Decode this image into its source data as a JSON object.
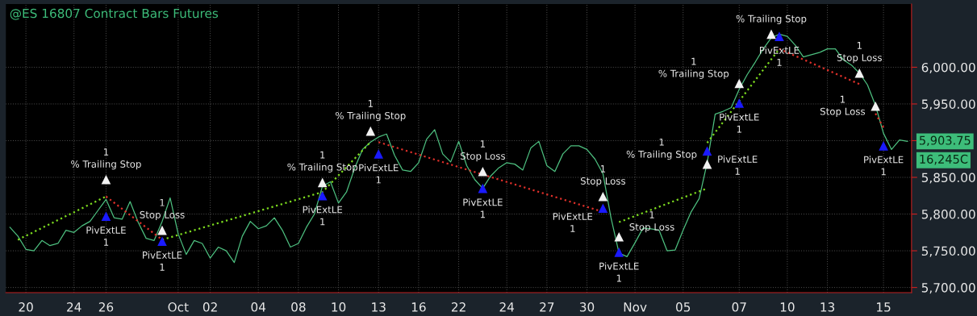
{
  "chart_data": {
    "type": "line",
    "title": "@ES 16807 Contract Bars Futures",
    "categories": [
      null,
      null,
      "20",
      null,
      null,
      null,
      null,
      null,
      "24",
      null,
      null,
      null,
      "26",
      null,
      null,
      null,
      null,
      null,
      null,
      null,
      null,
      "Oct",
      null,
      null,
      null,
      "02",
      null,
      null,
      null,
      null,
      null,
      "04",
      null,
      null,
      null,
      null,
      "08",
      null,
      null,
      null,
      null,
      "10",
      null,
      null,
      null,
      null,
      "13",
      null,
      null,
      null,
      null,
      "16",
      null,
      null,
      null,
      null,
      "22",
      null,
      null,
      null,
      null,
      null,
      "24",
      null,
      null,
      null,
      null,
      "27",
      null,
      null,
      null,
      null,
      "30",
      null,
      null,
      null,
      null,
      null,
      "Nov",
      null,
      null,
      null,
      null,
      null,
      "05",
      null,
      null,
      null,
      null,
      null,
      null,
      "07",
      null,
      null,
      null,
      null,
      null,
      "10",
      null,
      null,
      null,
      null,
      "13",
      null,
      null,
      null,
      null,
      null,
      null,
      "15",
      null,
      null,
      null
    ],
    "ylim": [
      5693,
      6086
    ],
    "yticks": [
      {
        "value": 5700,
        "label": "5,700.00"
      },
      {
        "value": 5750,
        "label": "5,750.00"
      },
      {
        "value": 5800,
        "label": "5,800.00"
      },
      {
        "value": 5850,
        "label": "5,850.00"
      },
      {
        "value": 5900,
        "label": null
      },
      {
        "value": 5950,
        "label": "5,950.00"
      },
      {
        "value": 6000,
        "label": "6,000.00"
      }
    ],
    "grid": true,
    "series": [
      {
        "color": "#4dbf7f",
        "line_style": "solid",
        "values": [
          5782,
          5770,
          5752,
          5750,
          5764,
          5757,
          5760,
          5778,
          5775,
          5784,
          5790,
          5805,
          5820,
          5795,
          5793,
          5817,
          5789,
          5767,
          5764,
          5790,
          5822,
          5773,
          5745,
          5764,
          5760,
          5740,
          5755,
          5750,
          5734,
          5770,
          5790,
          5780,
          5784,
          5795,
          5778,
          5755,
          5760,
          5782,
          5800,
          5838,
          5844,
          5815,
          5830,
          5862,
          5888,
          5898,
          5905,
          5909,
          5880,
          5860,
          5858,
          5870,
          5902,
          5915,
          5882,
          5871,
          5899,
          5866,
          5847,
          5835,
          5852,
          5863,
          5870,
          5868,
          5860,
          5890,
          5899,
          5866,
          5858,
          5882,
          5893,
          5893,
          5888,
          5875,
          5855,
          5795,
          5747,
          5742,
          5761,
          5781,
          5780,
          5778,
          5750,
          5751,
          5778,
          5803,
          5821,
          5870,
          5936,
          5940,
          5945,
          5970,
          5990,
          6007,
          6025,
          6040,
          6045,
          6042,
          6030,
          6014,
          6017,
          6020,
          6025,
          6025,
          6010,
          6003,
          5992,
          5976,
          5948,
          5910,
          5888,
          5901,
          5899
        ]
      },
      {
        "color": "#7ddc1f",
        "line_style": "dotted",
        "values": [
          null,
          5765,
          null,
          null,
          null,
          null,
          null,
          null,
          null,
          null,
          null,
          null,
          5824,
          null,
          null,
          null,
          null,
          null,
          null,
          null,
          null,
          null,
          null,
          null,
          null,
          null,
          null,
          null,
          null,
          null,
          null,
          null,
          null,
          null,
          null,
          null,
          null,
          null,
          null,
          null,
          null,
          null,
          null,
          null,
          null,
          null,
          null,
          null,
          null,
          null,
          null,
          null,
          null,
          null,
          null,
          null,
          null,
          null,
          null,
          null,
          null,
          null,
          null,
          null,
          null,
          null,
          null,
          null,
          null,
          null,
          null,
          null,
          null,
          null,
          null,
          null,
          null,
          null,
          null,
          null,
          null,
          null,
          null,
          null,
          null,
          null,
          null,
          null,
          null,
          null,
          null,
          null,
          null,
          null,
          null,
          null,
          null,
          null,
          null,
          null,
          null,
          null,
          null,
          null,
          null,
          null,
          null,
          null,
          null,
          null,
          null,
          null,
          null
        ]
      },
      {
        "color": "#7ddc1f",
        "line_style": "dotted",
        "values": [
          null,
          null,
          null,
          null,
          null,
          null,
          null,
          null,
          null,
          null,
          null,
          null,
          null,
          null,
          null,
          null,
          null,
          null,
          null,
          5765,
          null,
          null,
          null,
          null,
          null,
          null,
          null,
          null,
          null,
          null,
          null,
          null,
          null,
          null,
          null,
          null,
          null,
          null,
          null,
          5830,
          null,
          null,
          null,
          null,
          null,
          5898,
          null,
          null,
          null,
          null,
          null,
          null,
          null,
          null,
          null,
          null,
          null,
          null,
          null,
          null,
          null,
          null,
          null,
          null,
          null,
          null,
          null,
          null,
          null,
          null,
          null,
          null,
          null,
          null,
          null,
          null,
          null,
          null,
          null,
          null,
          null,
          null,
          null,
          null,
          null,
          null,
          null,
          null,
          null,
          null,
          null,
          null,
          null,
          null,
          null,
          null,
          null,
          null,
          null,
          null,
          null,
          null,
          null,
          null,
          null,
          null,
          null,
          null,
          null,
          null,
          null,
          null,
          null
        ]
      },
      {
        "color": "#7ddc1f",
        "line_style": "dotted",
        "values": [
          null,
          null,
          null,
          null,
          null,
          null,
          null,
          null,
          null,
          null,
          null,
          null,
          null,
          null,
          null,
          null,
          null,
          null,
          null,
          null,
          null,
          null,
          null,
          null,
          null,
          null,
          null,
          null,
          null,
          null,
          null,
          null,
          null,
          null,
          null,
          null,
          null,
          null,
          null,
          null,
          null,
          null,
          null,
          null,
          null,
          null,
          null,
          null,
          null,
          null,
          null,
          null,
          null,
          null,
          null,
          null,
          null,
          null,
          null,
          null,
          null,
          null,
          null,
          null,
          null,
          null,
          null,
          null,
          null,
          null,
          null,
          null,
          null,
          null,
          null,
          null,
          5789,
          null,
          null,
          null,
          null,
          null,
          null,
          null,
          null,
          null,
          null,
          5835,
          null,
          null,
          null,
          null,
          null,
          null,
          null,
          null,
          null,
          null,
          null,
          null,
          null,
          null,
          null,
          null,
          null,
          null,
          null,
          null,
          null,
          null,
          null,
          null,
          null
        ]
      },
      {
        "color": "#7ddc1f",
        "line_style": "dotted",
        "values": [
          null,
          null,
          null,
          null,
          null,
          null,
          null,
          null,
          null,
          null,
          null,
          null,
          null,
          null,
          null,
          null,
          null,
          null,
          null,
          null,
          null,
          null,
          null,
          null,
          null,
          null,
          null,
          null,
          null,
          null,
          null,
          null,
          null,
          null,
          null,
          null,
          null,
          null,
          null,
          null,
          null,
          null,
          null,
          null,
          null,
          null,
          null,
          null,
          null,
          null,
          null,
          null,
          null,
          null,
          null,
          null,
          null,
          null,
          null,
          null,
          null,
          null,
          null,
          null,
          null,
          null,
          null,
          null,
          null,
          null,
          null,
          null,
          null,
          null,
          null,
          null,
          null,
          null,
          null,
          null,
          null,
          null,
          null,
          null,
          null,
          null,
          null,
          5897,
          null,
          null,
          null,
          null,
          null,
          null,
          null,
          null,
          6025,
          null,
          null,
          null,
          null,
          null,
          null,
          null,
          null,
          null,
          null,
          null,
          null,
          null,
          null,
          null,
          null
        ]
      },
      {
        "color": "#e0302a",
        "line_style": "dotted",
        "values": [
          null,
          null,
          null,
          null,
          null,
          null,
          null,
          null,
          null,
          null,
          null,
          null,
          5824,
          null,
          null,
          null,
          null,
          null,
          null,
          5765,
          null,
          null,
          null,
          null,
          null,
          null,
          null,
          null,
          null,
          null,
          null,
          null,
          null,
          null,
          null,
          null,
          null,
          null,
          null,
          null,
          null,
          null,
          null,
          null,
          null,
          null,
          null,
          null,
          null,
          null,
          null,
          null,
          null,
          null,
          null,
          null,
          null,
          null,
          null,
          null,
          null,
          null,
          null,
          null,
          null,
          null,
          null,
          null,
          null,
          null,
          null,
          null,
          null,
          null,
          null,
          null,
          null,
          null,
          null,
          null,
          null,
          null,
          null,
          null,
          null,
          null,
          null,
          null,
          null,
          null,
          null,
          null,
          null,
          null,
          null,
          null,
          null,
          null,
          null,
          null,
          null,
          null,
          null,
          null,
          null,
          null,
          null,
          null,
          null,
          null,
          null,
          null,
          null
        ]
      },
      {
        "color": "#e0302a",
        "line_style": "dotted",
        "values": [
          null,
          null,
          null,
          null,
          null,
          null,
          null,
          null,
          null,
          null,
          null,
          null,
          null,
          null,
          null,
          null,
          null,
          null,
          null,
          null,
          null,
          null,
          null,
          null,
          null,
          null,
          null,
          null,
          null,
          null,
          null,
          null,
          null,
          null,
          null,
          null,
          null,
          null,
          null,
          null,
          null,
          null,
          null,
          null,
          null,
          null,
          5898,
          null,
          null,
          null,
          null,
          null,
          null,
          null,
          null,
          null,
          null,
          null,
          null,
          null,
          null,
          null,
          null,
          null,
          null,
          null,
          null,
          null,
          null,
          null,
          null,
          null,
          null,
          null,
          5803,
          null,
          null,
          null,
          null,
          null,
          null,
          null,
          null,
          null,
          null,
          null,
          null,
          null,
          null,
          null,
          null,
          null,
          null,
          null,
          null,
          null,
          null,
          null,
          null,
          null,
          null,
          null,
          null,
          null,
          null,
          null,
          null,
          null,
          null,
          null,
          null,
          null,
          null
        ]
      },
      {
        "color": "#e0302a",
        "line_style": "dotted",
        "values": [
          null,
          null,
          null,
          null,
          null,
          null,
          null,
          null,
          null,
          null,
          null,
          null,
          null,
          null,
          null,
          null,
          null,
          null,
          null,
          null,
          null,
          null,
          null,
          null,
          null,
          null,
          null,
          null,
          null,
          null,
          null,
          null,
          null,
          null,
          null,
          null,
          null,
          null,
          null,
          null,
          null,
          null,
          null,
          null,
          null,
          null,
          null,
          null,
          null,
          null,
          null,
          null,
          null,
          null,
          null,
          null,
          null,
          null,
          null,
          null,
          null,
          null,
          null,
          null,
          null,
          null,
          null,
          null,
          null,
          null,
          null,
          null,
          null,
          null,
          null,
          null,
          null,
          null,
          null,
          null,
          null,
          null,
          null,
          null,
          null,
          null,
          null,
          null,
          null,
          null,
          null,
          null,
          null,
          null,
          null,
          null,
          6025,
          null,
          null,
          null,
          null,
          null,
          null,
          null,
          null,
          null,
          5977,
          null,
          null,
          null,
          null,
          null,
          null
        ]
      },
      {
        "color": "#e0302a",
        "line_style": "dotted",
        "values": [
          null,
          null,
          null,
          null,
          null,
          null,
          null,
          null,
          null,
          null,
          null,
          null,
          null,
          null,
          null,
          null,
          null,
          null,
          null,
          null,
          null,
          null,
          null,
          null,
          null,
          null,
          null,
          null,
          null,
          null,
          null,
          null,
          null,
          null,
          null,
          null,
          null,
          null,
          null,
          null,
          null,
          null,
          null,
          null,
          null,
          null,
          null,
          null,
          null,
          null,
          null,
          null,
          null,
          null,
          null,
          null,
          null,
          null,
          null,
          null,
          null,
          null,
          null,
          null,
          null,
          null,
          null,
          null,
          null,
          null,
          null,
          null,
          null,
          null,
          null,
          null,
          null,
          null,
          null,
          null,
          null,
          null,
          null,
          null,
          null,
          null,
          null,
          null,
          null,
          null,
          null,
          null,
          null,
          null,
          null,
          null,
          null,
          null,
          null,
          null,
          null,
          null,
          null,
          null,
          null,
          null,
          null,
          null,
          5937,
          5918,
          null,
          null,
          null
        ]
      },
      {
        "type": "scatter",
        "name": "PivExtLE\n1",
        "color": "#1a1aff",
        "marker": "triangle",
        "values": [
          null,
          null,
          null,
          null,
          null,
          null,
          null,
          null,
          null,
          null,
          null,
          null,
          5797,
          null,
          null,
          null,
          null,
          null,
          null,
          5763,
          null,
          null,
          null,
          null,
          null,
          null,
          null,
          null,
          null,
          null,
          null,
          null,
          null,
          null,
          null,
          null,
          null,
          null,
          null,
          5825,
          null,
          null,
          null,
          null,
          null,
          null,
          5882,
          null,
          null,
          null,
          null,
          null,
          null,
          null,
          null,
          null,
          null,
          null,
          null,
          5835,
          null,
          null,
          null,
          null,
          null,
          null,
          null,
          null,
          null,
          null,
          null,
          null,
          null,
          null,
          5808,
          null,
          5748,
          null,
          null,
          null,
          null,
          null,
          null,
          null,
          null,
          null,
          null,
          5886,
          null,
          null,
          null,
          5951,
          null,
          null,
          null,
          null,
          6042,
          null,
          null,
          null,
          null,
          null,
          null,
          null,
          null,
          null,
          null,
          null,
          null,
          5893,
          null,
          null,
          null
        ]
      },
      {
        "type": "scatter",
        "name": "1\n% Trailing Stop",
        "color": "#f2f2f2",
        "marker": "triangle",
        "values": [
          null,
          null,
          null,
          null,
          null,
          null,
          null,
          null,
          null,
          null,
          null,
          null,
          5847,
          null,
          null,
          null,
          null,
          null,
          null,
          null,
          null,
          null,
          null,
          null,
          null,
          null,
          null,
          null,
          null,
          null,
          null,
          null,
          null,
          null,
          null,
          null,
          null,
          null,
          null,
          5843,
          null,
          null,
          null,
          null,
          null,
          5913,
          null,
          null,
          null,
          null,
          null,
          null,
          null,
          null,
          null,
          null,
          null,
          null,
          null,
          null,
          null,
          null,
          null,
          null,
          null,
          null,
          null,
          null,
          null,
          null,
          null,
          null,
          null,
          null,
          null,
          null,
          null,
          null,
          null,
          null,
          null,
          null,
          null,
          null,
          null,
          null,
          null,
          5868,
          null,
          null,
          null,
          5978,
          null,
          null,
          null,
          null,
          null,
          null,
          null,
          null,
          null,
          null,
          null,
          null,
          null,
          null,
          null,
          null,
          null,
          null,
          null,
          null,
          null
        ]
      },
      {
        "type": "scatter",
        "name": "1\nStop Loss",
        "color": "#f2f2f2",
        "marker": "triangle",
        "values": [
          null,
          null,
          null,
          null,
          null,
          null,
          null,
          null,
          null,
          null,
          null,
          null,
          null,
          null,
          null,
          null,
          null,
          null,
          null,
          5778,
          null,
          null,
          null,
          null,
          null,
          null,
          null,
          null,
          null,
          null,
          null,
          null,
          null,
          null,
          null,
          null,
          null,
          null,
          null,
          null,
          null,
          null,
          null,
          null,
          null,
          null,
          null,
          null,
          null,
          null,
          null,
          null,
          null,
          null,
          null,
          null,
          null,
          null,
          null,
          5858,
          null,
          null,
          null,
          null,
          null,
          null,
          null,
          null,
          null,
          null,
          null,
          null,
          null,
          null,
          5824,
          null,
          5769,
          null,
          null,
          null,
          null,
          null,
          null,
          null,
          null,
          null,
          null,
          null,
          null,
          null,
          null,
          null,
          null,
          null,
          null,
          null,
          null,
          null,
          null,
          null,
          null,
          null,
          null,
          null,
          null,
          null,
          5992,
          null,
          5947,
          null,
          null,
          null,
          null
        ]
      },
      {
        "type": "scatter",
        "name": "% Trailing Stop",
        "color": "#f2f2f2",
        "marker": "triangle",
        "values": [
          null,
          null,
          null,
          null,
          null,
          null,
          null,
          null,
          null,
          null,
          null,
          null,
          null,
          null,
          null,
          null,
          null,
          null,
          null,
          null,
          null,
          null,
          null,
          null,
          null,
          null,
          null,
          null,
          null,
          null,
          null,
          null,
          null,
          null,
          null,
          null,
          null,
          null,
          null,
          null,
          null,
          null,
          null,
          null,
          null,
          null,
          null,
          null,
          null,
          null,
          null,
          null,
          null,
          null,
          null,
          null,
          null,
          null,
          null,
          null,
          null,
          null,
          null,
          null,
          null,
          null,
          null,
          null,
          null,
          null,
          null,
          null,
          null,
          null,
          null,
          null,
          null,
          null,
          null,
          null,
          null,
          null,
          null,
          null,
          null,
          null,
          null,
          null,
          null,
          null,
          null,
          null,
          null,
          null,
          null,
          6045,
          null,
          null,
          null,
          null,
          null,
          null,
          null,
          null,
          null,
          null,
          null,
          null,
          null,
          null,
          null,
          null,
          null
        ]
      }
    ],
    "annotations": [
      "5,903.75",
      "16,245C"
    ]
  }
}
